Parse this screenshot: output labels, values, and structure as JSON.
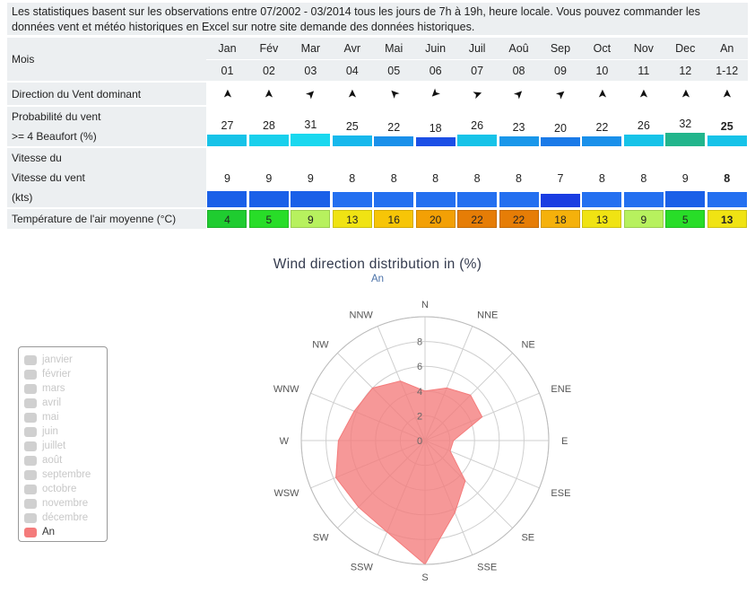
{
  "intro_text": "Les statistiques basent sur les observations entre 07/2002 - 03/2014 tous les jours de 7h à 19h, heure locale. Vous pouvez commander les données vent et météo historiques en Excel sur notre site demande des données historiques.",
  "table": {
    "label_mois": "Mois",
    "label_direction": "Direction du Vent dominant",
    "label_prob_1": "Probabilité du vent",
    "label_prob_2": ">= 4 Beaufort (%)",
    "label_speed_1": "Vitesse du",
    "label_speed_2": "Vitesse du vent",
    "label_speed_3": "(kts)",
    "label_temp": "Température de l'air moyenne (°C)",
    "months": [
      {
        "name": "Jan",
        "num": "01",
        "arrow": "➤",
        "rot": -90,
        "prob": "27",
        "probColor": "#17c3e8",
        "probH": 13,
        "speed": "9",
        "speedColor": "#1a60e8",
        "speedH": 18,
        "temp": "4",
        "tempColor": "#1fcc30"
      },
      {
        "name": "Fév",
        "num": "02",
        "arrow": "➤",
        "rot": -90,
        "prob": "28",
        "probColor": "#19d0ec",
        "probH": 13,
        "speed": "9",
        "speedColor": "#1a60e8",
        "speedH": 18,
        "temp": "5",
        "tempColor": "#28dd28"
      },
      {
        "name": "Mar",
        "num": "03",
        "arrow": "➤",
        "rot": -45,
        "prob": "31",
        "probColor": "#1ad8ef",
        "probH": 14,
        "speed": "9",
        "speedColor": "#1a60e8",
        "speedH": 18,
        "temp": "9",
        "tempColor": "#b7f15e"
      },
      {
        "name": "Avr",
        "num": "04",
        "arrow": "➤",
        "rot": -90,
        "prob": "25",
        "probColor": "#17b8ec",
        "probH": 12,
        "speed": "8",
        "speedColor": "#2470f0",
        "speedH": 17,
        "temp": "13",
        "tempColor": "#f0e313"
      },
      {
        "name": "Mai",
        "num": "05",
        "arrow": "➤",
        "rot": -135,
        "prob": "22",
        "probColor": "#1a90ea",
        "probH": 11,
        "speed": "8",
        "speedColor": "#2470f0",
        "speedH": 17,
        "temp": "16",
        "tempColor": "#f7c507"
      },
      {
        "name": "Juin",
        "num": "06",
        "arrow": "➤",
        "rot": 135,
        "prob": "18",
        "probColor": "#1c4fe6",
        "probH": 10,
        "speed": "8",
        "speedColor": "#2470f0",
        "speedH": 17,
        "temp": "20",
        "tempColor": "#f3a005"
      },
      {
        "name": "Juil",
        "num": "07",
        "arrow": "➤",
        "rot": -20,
        "prob": "26",
        "probColor": "#17c3e8",
        "probH": 13,
        "speed": "8",
        "speedColor": "#2470f0",
        "speedH": 17,
        "temp": "22",
        "tempColor": "#e67d06"
      },
      {
        "name": "Aoû",
        "num": "08",
        "arrow": "➤",
        "rot": -45,
        "prob": "23",
        "probColor": "#1a97ea",
        "probH": 11,
        "speed": "8",
        "speedColor": "#2470f0",
        "speedH": 17,
        "temp": "22",
        "tempColor": "#e67d06"
      },
      {
        "name": "Sep",
        "num": "09",
        "arrow": "➤",
        "rot": -40,
        "prob": "20",
        "probColor": "#1a7ae8",
        "probH": 10,
        "speed": "7",
        "speedColor": "#1a3de2",
        "speedH": 15,
        "temp": "18",
        "tempColor": "#f5b10b"
      },
      {
        "name": "Oct",
        "num": "10",
        "arrow": "➤",
        "rot": -90,
        "prob": "22",
        "probColor": "#1a90ea",
        "probH": 11,
        "speed": "8",
        "speedColor": "#2470f0",
        "speedH": 17,
        "temp": "13",
        "tempColor": "#f0e313"
      },
      {
        "name": "Nov",
        "num": "11",
        "arrow": "➤",
        "rot": -90,
        "prob": "26",
        "probColor": "#17c3e8",
        "probH": 13,
        "speed": "8",
        "speedColor": "#2470f0",
        "speedH": 17,
        "temp": "9",
        "tempColor": "#b7f15e"
      },
      {
        "name": "Dec",
        "num": "12",
        "arrow": "➤",
        "rot": -90,
        "prob": "32",
        "probColor": "#22b58c",
        "probH": 15,
        "speed": "9",
        "speedColor": "#1a60e8",
        "speedH": 18,
        "temp": "5",
        "tempColor": "#28dd28"
      },
      {
        "name": "An",
        "num": "1-12",
        "arrow": "➤",
        "rot": -90,
        "prob": "25",
        "probColor": "#17c3e8",
        "probH": 12,
        "speed": "8",
        "speedColor": "#2470f0",
        "speedH": 17,
        "temp": "13",
        "tempColor": "#f0e313",
        "bold": true
      }
    ]
  },
  "chart_data": {
    "type": "polar-area",
    "title": "Wind direction distribution in (%)",
    "subtitle": "An",
    "directions": [
      "N",
      "NNE",
      "NE",
      "ENE",
      "E",
      "ESE",
      "SE",
      "SSE",
      "S",
      "SSW",
      "SW",
      "WSW",
      "W",
      "WNW",
      "NW",
      "NNW"
    ],
    "series": [
      {
        "name": "An",
        "color": "#f47b7b",
        "values": [
          4.0,
          4.6,
          5.2,
          5.0,
          2.3,
          2.2,
          4.6,
          6.3,
          10.0,
          8.0,
          7.6,
          7.8,
          7.0,
          6.2,
          6.0,
          5.2
        ]
      }
    ],
    "radial_ticks": [
      "0",
      "2",
      "4",
      "6",
      "8"
    ],
    "rmax": 10,
    "legend": [
      "janvier",
      "février",
      "mars",
      "avril",
      "mai",
      "juin",
      "juillet",
      "août",
      "septembre",
      "octobre",
      "novembre",
      "décembre",
      "An"
    ],
    "legend_active": "An",
    "legend_placement": "left"
  }
}
